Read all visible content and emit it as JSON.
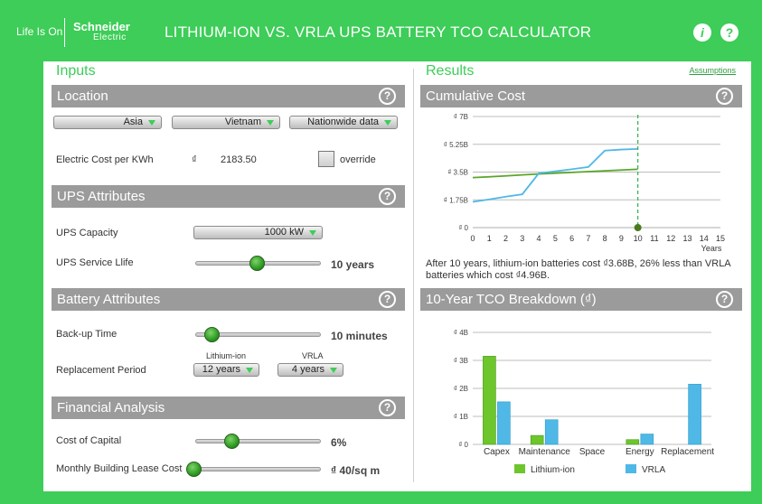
{
  "header": {
    "tagline": "Life Is On",
    "brand": "Schneider",
    "brand_sub": "Electric",
    "title": "LITHIUM-ION VS. VRLA UPS BATTERY TCO CALCULATOR",
    "info_icon": "i",
    "help_icon": "?"
  },
  "inputs": {
    "title": "Inputs",
    "location": {
      "heading": "Location",
      "region": "Asia",
      "country": "Vietnam",
      "data_scope": "Nationwide data",
      "electric_cost_label": "Electric Cost per KWh",
      "currency_symbol": "₫",
      "electric_cost_value": "2183.50",
      "override_label": "override"
    },
    "ups": {
      "heading": "UPS Attributes",
      "capacity_label": "UPS Capacity",
      "capacity_value": "1000 kW",
      "service_life_label": "UPS Service Llife",
      "service_life_value": "10 years",
      "service_life_level": 0.47
    },
    "battery": {
      "heading": "Battery Attributes",
      "backup_label": "Back-up Time",
      "backup_value": "10 minutes",
      "backup_level": 0.1,
      "replacement_label": "Replacement Period",
      "li_label": "Lithium-ion",
      "li_value": "12 years",
      "vrla_label": "VRLA",
      "vrla_value": "4 years"
    },
    "financial": {
      "heading": "Financial Analysis",
      "coc_label": "Cost of Capital",
      "coc_value": "6%",
      "coc_level": 0.3,
      "lease_label": "Monthly Building Lease Cost",
      "lease_value": "₫ 40/sq m",
      "lease_level": 0.0
    }
  },
  "results": {
    "title": "Results",
    "assumptions_link": "Assumptions",
    "cumulative_heading": "Cumulative Cost",
    "caption": "After 10 years,  lithium-ion batteries cost ₫3.68B, 26% less than VRLA batteries which cost ₫4.96B.",
    "breakdown_heading": "10-Year TCO Breakdown (₫)"
  },
  "colors": {
    "brand_green": "#3dcd58",
    "section_gray": "#9b9b9b",
    "li_series": "#6cc62c",
    "vrla_series": "#4fb8e6"
  },
  "chart_data": [
    {
      "type": "line",
      "title": "Cumulative Cost",
      "xlabel": "Years",
      "x": [
        0,
        1,
        2,
        3,
        4,
        5,
        6,
        7,
        8,
        9,
        10
      ],
      "xticks": [
        "0",
        "1",
        "2",
        "3",
        "4",
        "5",
        "6",
        "7",
        "8",
        "9",
        "10",
        "11",
        "12",
        "13",
        "14",
        "15"
      ],
      "xlim": [
        0,
        15
      ],
      "ylim": [
        0,
        7
      ],
      "yticks": [
        "₫ 0",
        "₫ 1.75B",
        "₫ 3.5B",
        "₫ 5.25B",
        "₫ 7B"
      ],
      "series": [
        {
          "name": "Lithium-ion",
          "color": "#5aa628",
          "values": [
            3.15,
            3.2,
            3.26,
            3.32,
            3.38,
            3.43,
            3.48,
            3.53,
            3.58,
            3.63,
            3.68
          ]
        },
        {
          "name": "VRLA",
          "color": "#4fb8e6",
          "values": [
            1.62,
            1.78,
            1.95,
            2.1,
            3.42,
            3.55,
            3.68,
            3.82,
            4.85,
            4.92,
            4.96
          ]
        }
      ],
      "marker_x": 10
    },
    {
      "type": "bar",
      "title": "10-Year TCO Breakdown (₫)",
      "categories": [
        "Capex",
        "Maintenance",
        "Space",
        "Energy",
        "Replacement"
      ],
      "ylim": [
        0,
        4
      ],
      "yticks": [
        "₫ 0",
        "₫ 1B",
        "₫ 2B",
        "₫ 3B",
        "₫ 4B"
      ],
      "series": [
        {
          "name": "Lithium-ion",
          "color": "#6cc62c",
          "values": [
            3.15,
            0.32,
            0,
            0.17,
            0
          ]
        },
        {
          "name": "VRLA",
          "color": "#4fb8e6",
          "values": [
            1.52,
            0.88,
            0,
            0.37,
            2.15
          ]
        }
      ]
    }
  ]
}
